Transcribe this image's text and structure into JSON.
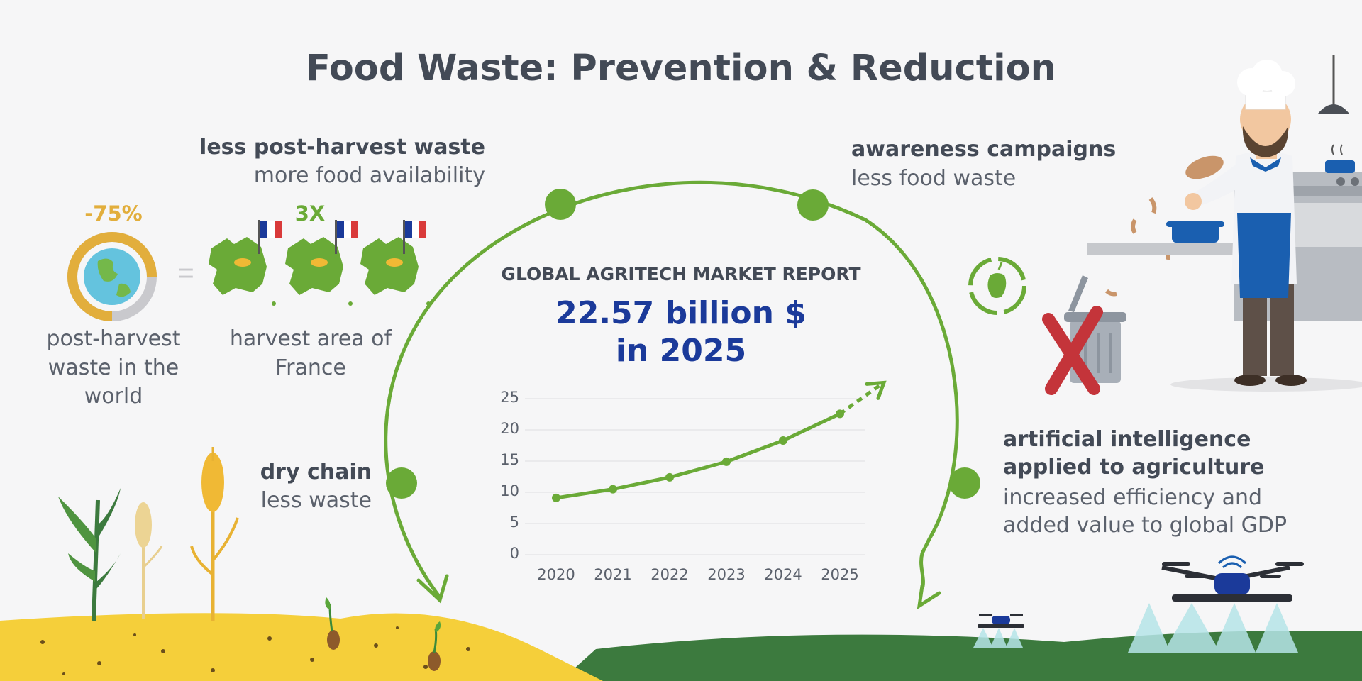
{
  "title": "Food Waste: Prevention & Reduction",
  "post_harvest": {
    "headline": "less post-harvest waste",
    "subline": "more food availability",
    "percent": "-75%",
    "multiplier": "3X",
    "world_caption": [
      "post-harvest",
      "waste in the",
      "world"
    ],
    "france_caption": [
      "harvest area of",
      "France"
    ],
    "equals_sign": "="
  },
  "awareness": {
    "headline": "awareness campaigns",
    "subline": "less food waste"
  },
  "dry_chain": {
    "headline": "dry chain",
    "subline": "less waste"
  },
  "ai": {
    "headline": [
      "artificial intelligence",
      "applied to agriculture"
    ],
    "subline": [
      "increased efficiency and",
      "added value to global GDP"
    ]
  },
  "report": {
    "heading": "GLOBAL AGRITECH MARKET REPORT",
    "value_line1": "22.57 billion $",
    "value_line2": "in 2025"
  },
  "colors": {
    "accent_green": "#6aaa37",
    "dark_green": "#3c7a3e",
    "navy": "#1b3a9a",
    "gold": "#e2ae3c",
    "soil": "#f5cf3a",
    "no_sign": "#c4343a"
  },
  "icons": [
    "globe-icon",
    "france-map-icon",
    "french-flag-icon",
    "wheat-icon",
    "recycle-apple-icon",
    "trash-can-icon",
    "chef-illustration",
    "drone-icon"
  ],
  "chart_data": {
    "type": "line",
    "x": [
      "2020",
      "2021",
      "2022",
      "2023",
      "2024",
      "2025"
    ],
    "values": [
      9.1,
      10.5,
      12.4,
      14.9,
      18.3,
      22.57
    ],
    "yticks": [
      0,
      5,
      10,
      15,
      20,
      25
    ],
    "ylim": [
      0,
      25
    ],
    "grid": true,
    "trend_arrow": "dashed extension beyond 2025",
    "color": "#6aaa37"
  }
}
